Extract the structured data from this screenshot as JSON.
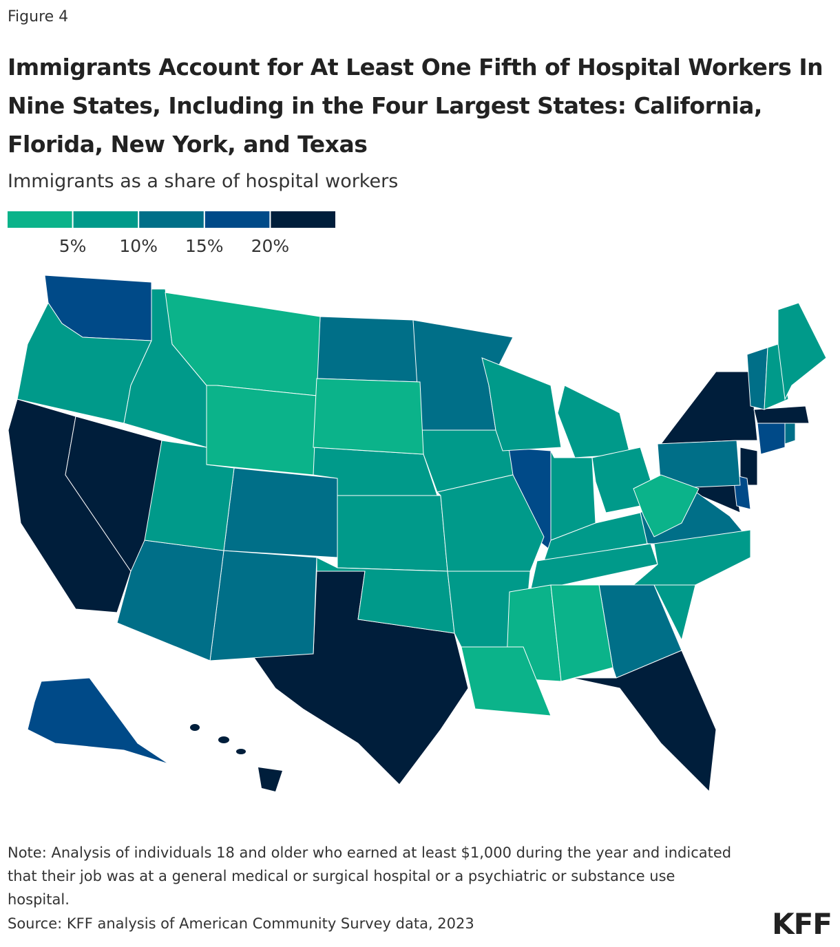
{
  "figure_label": "Figure 4",
  "chart_data": {
    "type": "choropleth",
    "title": "Immigrants Account for At Least One Fifth of Hospital Workers In Nine States, Including in the Four Largest States: California, Florida, New York, and Texas",
    "subtitle": "Immigrants as a share of hospital workers",
    "colors": [
      "#0bb38a",
      "#009a8a",
      "#006f88",
      "#004a88",
      "#001e3b"
    ],
    "ticks": [
      {
        "value": 5,
        "label": "5%"
      },
      {
        "value": 10,
        "label": "10%"
      },
      {
        "value": 15,
        "label": "15%"
      },
      {
        "value": 20,
        "label": "20%"
      }
    ],
    "values": {
      "CA": 22,
      "NV": 22,
      "TX": 22,
      "FL": 22,
      "NY": 22,
      "NJ": 22,
      "MD": 22,
      "MA": 22,
      "HI": 22,
      "WA": 17,
      "AK": 17,
      "IL": 17,
      "CT": 17,
      "DE": 17,
      "ND": 12,
      "MN": 12,
      "CO": 12,
      "NM": 12,
      "AZ": 12,
      "GA": 12,
      "VA": 12,
      "PA": 12,
      "VT": 12,
      "RI": 12,
      "OR": 7,
      "ID": 7,
      "UT": 7,
      "NE": 7,
      "KS": 7,
      "OK": 7,
      "IA": 7,
      "MO": 7,
      "AR": 7,
      "WI": 7,
      "MI": 7,
      "IN": 7,
      "OH": 7,
      "KY": 7,
      "TN": 7,
      "NC": 7,
      "SC": 7,
      "NH": 7,
      "ME": 7,
      "MT": 3,
      "WY": 3,
      "SD": 3,
      "WV": 3,
      "MS": 3,
      "AL": 3,
      "LA": 3
    }
  },
  "note": "Note: Analysis of individuals 18 and older who earned at least $1,000 during the year and indicated that their job was at a general medical or surgical hospital or a psychiatric or substance use hospital.",
  "source": "Source: KFF analysis of American Community Survey data, 2023",
  "logo": "KFF"
}
